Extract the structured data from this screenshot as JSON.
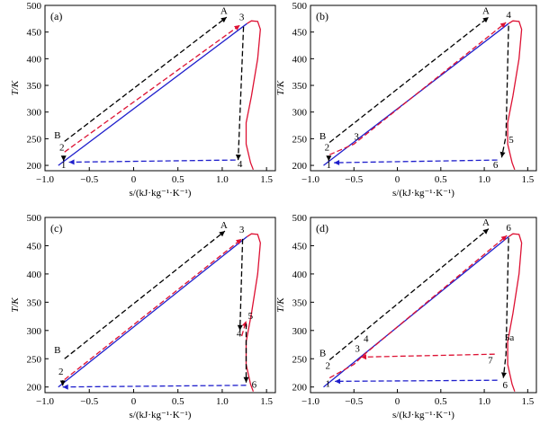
{
  "chart_data": [
    {
      "panel": "(a)",
      "type": "line",
      "xlabel": "s/(kJ·kg⁻¹·K⁻¹)",
      "ylabel": "T/K",
      "xlim": [
        -1.0,
        1.6
      ],
      "ylim": [
        190,
        500
      ],
      "xticks": [
        -1.0,
        -0.5,
        0,
        0.5,
        1.0,
        1.5
      ],
      "yticks": [
        200,
        250,
        300,
        350,
        400,
        450,
        500
      ],
      "grid": false,
      "series": [
        {
          "color": "#1f1fcc",
          "style": "solid",
          "points": [
            [
              -0.85,
              200
            ],
            [
              1.28,
              466
            ]
          ]
        },
        {
          "color": "#dd1133",
          "style": "solid",
          "points": [
            [
              1.28,
              466
            ],
            [
              1.33,
              471
            ],
            [
              1.4,
              470
            ],
            [
              1.43,
              455
            ],
            [
              1.4,
              400
            ],
            [
              1.33,
              330
            ],
            [
              1.27,
              280
            ],
            [
              1.27,
              240
            ],
            [
              1.32,
              205
            ],
            [
              1.35,
              192
            ]
          ]
        },
        {
          "color": "#dd1133",
          "style": "dashed",
          "points": [
            [
              -0.78,
              225
            ],
            [
              1.2,
              463
            ]
          ]
        },
        {
          "color": "#000000",
          "style": "dashed",
          "points": [
            [
              -0.78,
              245
            ],
            [
              1.05,
              478
            ]
          ]
        },
        {
          "color": "#000000",
          "style": "dashed",
          "points": [
            [
              1.24,
              460
            ],
            [
              1.18,
              210
            ]
          ]
        },
        {
          "color": "#1f1fcc",
          "style": "dashed",
          "points": [
            [
              1.15,
              210
            ],
            [
              -0.73,
              206
            ]
          ]
        },
        {
          "color": "#000000",
          "style": "dashed",
          "points": [
            [
              -0.79,
              218
            ],
            [
              -0.79,
              208
            ]
          ]
        }
      ],
      "annotations": [
        {
          "text": "A",
          "x": 1.02,
          "y": 484
        },
        {
          "text": "3",
          "x": 1.22,
          "y": 472
        },
        {
          "text": "B",
          "x": -0.86,
          "y": 251
        },
        {
          "text": "2",
          "x": -0.81,
          "y": 228
        },
        {
          "text": "1",
          "x": -0.79,
          "y": 195
        },
        {
          "text": "4",
          "x": 1.2,
          "y": 197
        }
      ]
    },
    {
      "panel": "(b)",
      "type": "line",
      "xlabel": "s/(kJ·kg⁻¹·K⁻¹)",
      "ylabel": "T/K",
      "xlim": [
        -1.0,
        1.6
      ],
      "ylim": [
        190,
        500
      ],
      "xticks": [
        -1.0,
        -0.5,
        0,
        0.5,
        1.0,
        1.5
      ],
      "yticks": [
        200,
        250,
        300,
        350,
        400,
        450,
        500
      ],
      "grid": false,
      "series": [
        {
          "color": "#1f1fcc",
          "style": "solid",
          "points": [
            [
              -0.85,
              200
            ],
            [
              1.28,
              466
            ]
          ]
        },
        {
          "color": "#dd1133",
          "style": "solid",
          "points": [
            [
              1.28,
              466
            ],
            [
              1.33,
              471
            ],
            [
              1.4,
              470
            ],
            [
              1.43,
              455
            ],
            [
              1.4,
              400
            ],
            [
              1.33,
              330
            ],
            [
              1.27,
              280
            ],
            [
              1.27,
              240
            ],
            [
              1.32,
              205
            ],
            [
              1.35,
              192
            ]
          ]
        },
        {
          "color": "#dd1133",
          "style": "dashed",
          "points": [
            [
              -0.78,
              220
            ],
            [
              -0.5,
              240
            ],
            [
              1.25,
              468
            ]
          ]
        },
        {
          "color": "#000000",
          "style": "dashed",
          "points": [
            [
              -0.78,
              243
            ],
            [
              1.05,
              478
            ]
          ]
        },
        {
          "color": "#000000",
          "style": "dashed",
          "points": [
            [
              1.28,
              462
            ],
            [
              1.25,
              255
            ],
            [
              1.2,
              215
            ]
          ]
        },
        {
          "color": "#1f1fcc",
          "style": "dashed",
          "points": [
            [
              1.15,
              210
            ],
            [
              -0.73,
              205
            ]
          ]
        },
        {
          "color": "#000000",
          "style": "dashed",
          "points": [
            [
              -0.79,
              218
            ],
            [
              -0.79,
              208
            ]
          ]
        }
      ],
      "annotations": [
        {
          "text": "A",
          "x": 1.02,
          "y": 484
        },
        {
          "text": "4",
          "x": 1.28,
          "y": 476
        },
        {
          "text": "B",
          "x": -0.86,
          "y": 249
        },
        {
          "text": "3",
          "x": -0.47,
          "y": 248
        },
        {
          "text": "2",
          "x": -0.81,
          "y": 228
        },
        {
          "text": "5",
          "x": 1.31,
          "y": 242
        },
        {
          "text": "1",
          "x": -0.79,
          "y": 195
        },
        {
          "text": "6",
          "x": 1.13,
          "y": 195
        }
      ]
    },
    {
      "panel": "(c)",
      "type": "line",
      "xlabel": "s/(kJ·kg⁻¹·K⁻¹)",
      "ylabel": "T/K",
      "xlim": [
        -1.0,
        1.6
      ],
      "ylim": [
        190,
        500
      ],
      "xticks": [
        -1.0,
        -0.5,
        0,
        0.5,
        1.0,
        1.5
      ],
      "yticks": [
        200,
        250,
        300,
        350,
        400,
        450,
        500
      ],
      "grid": false,
      "series": [
        {
          "color": "#1f1fcc",
          "style": "solid",
          "points": [
            [
              -0.85,
              200
            ],
            [
              1.28,
              466
            ]
          ]
        },
        {
          "color": "#dd1133",
          "style": "solid",
          "points": [
            [
              1.28,
              466
            ],
            [
              1.33,
              471
            ],
            [
              1.4,
              470
            ],
            [
              1.43,
              455
            ],
            [
              1.4,
              400
            ],
            [
              1.33,
              330
            ],
            [
              1.27,
              280
            ],
            [
              1.27,
              240
            ],
            [
              1.32,
              205
            ],
            [
              1.35,
              192
            ]
          ]
        },
        {
          "color": "#dd1133",
          "style": "dashed",
          "points": [
            [
              -0.78,
              213
            ],
            [
              1.22,
              462
            ]
          ]
        },
        {
          "color": "#000000",
          "style": "dashed",
          "points": [
            [
              -0.78,
              250
            ],
            [
              1.03,
              476
            ]
          ]
        },
        {
          "color": "#000000",
          "style": "dashed",
          "points": [
            [
              1.23,
              462
            ],
            [
              1.2,
              300
            ]
          ]
        },
        {
          "color": "#dd1133",
          "style": "dashed",
          "points": [
            [
              1.22,
              290
            ],
            [
              1.27,
              317
            ]
          ]
        },
        {
          "color": "#000000",
          "style": "dashed",
          "points": [
            [
              1.27,
              312
            ],
            [
              1.27,
              208
            ]
          ]
        },
        {
          "color": "#1f1fcc",
          "style": "dashed",
          "points": [
            [
              1.27,
              203
            ],
            [
              -0.8,
              200
            ]
          ]
        },
        {
          "color": "#000000",
          "style": "dashed",
          "points": [
            [
              -0.8,
              212
            ],
            [
              -0.8,
              202
            ]
          ]
        }
      ],
      "annotations": [
        {
          "text": "A",
          "x": 1.02,
          "y": 481
        },
        {
          "text": "3",
          "x": 1.22,
          "y": 473
        },
        {
          "text": "B",
          "x": -0.86,
          "y": 260
        },
        {
          "text": "5",
          "x": 1.32,
          "y": 320
        },
        {
          "text": "4",
          "x": 1.19,
          "y": 289
        },
        {
          "text": "2",
          "x": -0.82,
          "y": 222
        },
        {
          "text": "6",
          "x": 1.36,
          "y": 199
        }
      ]
    },
    {
      "panel": "(d)",
      "type": "line",
      "xlabel": "s/(kJ·kg⁻¹·K⁻¹)",
      "ylabel": "T/K",
      "xlim": [
        -1.0,
        1.6
      ],
      "ylim": [
        190,
        500
      ],
      "xticks": [
        -1.0,
        -0.5,
        0,
        0.5,
        1.0,
        1.5
      ],
      "yticks": [
        200,
        250,
        300,
        350,
        400,
        450,
        500
      ],
      "grid": false,
      "series": [
        {
          "color": "#1f1fcc",
          "style": "solid",
          "points": [
            [
              -0.85,
              200
            ],
            [
              1.28,
              466
            ]
          ]
        },
        {
          "color": "#dd1133",
          "style": "solid",
          "points": [
            [
              1.28,
              466
            ],
            [
              1.33,
              471
            ],
            [
              1.4,
              470
            ],
            [
              1.43,
              455
            ],
            [
              1.4,
              400
            ],
            [
              1.33,
              330
            ],
            [
              1.27,
              280
            ],
            [
              1.27,
              240
            ],
            [
              1.32,
              205
            ],
            [
              1.35,
              192
            ]
          ]
        },
        {
          "color": "#dd1133",
          "style": "dashed",
          "points": [
            [
              -0.78,
              216
            ],
            [
              -0.5,
              240
            ],
            [
              -0.4,
              255
            ],
            [
              1.26,
              468
            ]
          ]
        },
        {
          "color": "#000000",
          "style": "dashed",
          "points": [
            [
              -0.78,
              248
            ],
            [
              1.05,
              480
            ]
          ]
        },
        {
          "color": "#000000",
          "style": "dashed",
          "points": [
            [
              1.28,
              464
            ],
            [
              1.25,
              258
            ],
            [
              1.22,
              216
            ]
          ]
        },
        {
          "color": "#dd1133",
          "style": "dashed",
          "points": [
            [
              1.12,
              258
            ],
            [
              -0.42,
              253
            ]
          ]
        },
        {
          "color": "#1f1fcc",
          "style": "dashed",
          "points": [
            [
              1.15,
              212
            ],
            [
              -0.72,
              210
            ]
          ]
        }
      ],
      "annotations": [
        {
          "text": "A",
          "x": 1.02,
          "y": 486
        },
        {
          "text": "6",
          "x": 1.28,
          "y": 476
        },
        {
          "text": "4",
          "x": -0.36,
          "y": 280
        },
        {
          "text": "3",
          "x": -0.46,
          "y": 262
        },
        {
          "text": "B",
          "x": -0.86,
          "y": 254
        },
        {
          "text": "2",
          "x": -0.8,
          "y": 232
        },
        {
          "text": "1",
          "x": -0.8,
          "y": 200
        },
        {
          "text": "5a",
          "x": 1.29,
          "y": 282
        },
        {
          "text": "7",
          "x": 1.07,
          "y": 242
        },
        {
          "text": "6",
          "x": 1.24,
          "y": 198
        }
      ]
    }
  ]
}
